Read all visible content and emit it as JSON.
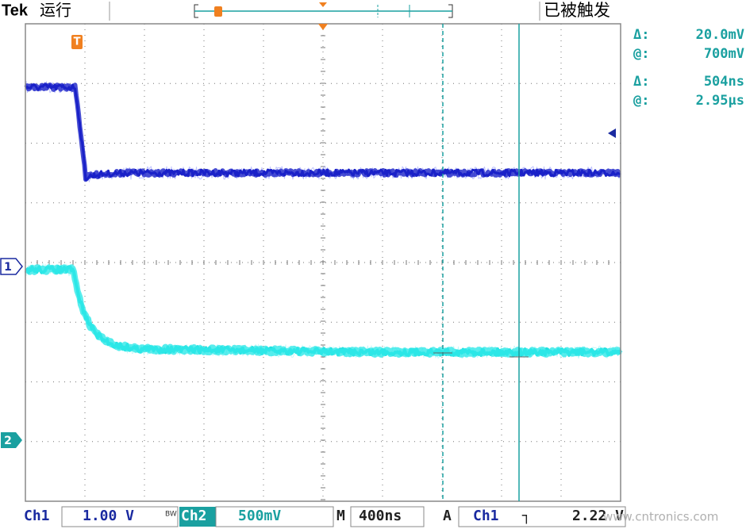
{
  "header": {
    "brand": "Tek",
    "status": "运行",
    "trigger_state": "已被触发"
  },
  "readouts": [
    {
      "symbol": "Δ:",
      "value": "20.0mV"
    },
    {
      "symbol": "@:",
      "value": "700mV"
    },
    {
      "symbol": "Δ:",
      "value": "504ns"
    },
    {
      "symbol": "@:",
      "value": "2.95µs"
    }
  ],
  "markers": {
    "trigger": "T",
    "ch1": "1",
    "ch2": "2"
  },
  "status_bar": {
    "ch1_label": "Ch1",
    "ch1_scale": "1.00 V",
    "bw": "BW",
    "ch2_label": "Ch2",
    "ch2_scale": "500mV",
    "time_label": "M",
    "time_scale": "400ns",
    "acq": "A",
    "trig_source": "Ch1",
    "trig_slope": "┐",
    "trig_level": "2.22 V"
  },
  "watermark": "www.cntronics.com"
}
